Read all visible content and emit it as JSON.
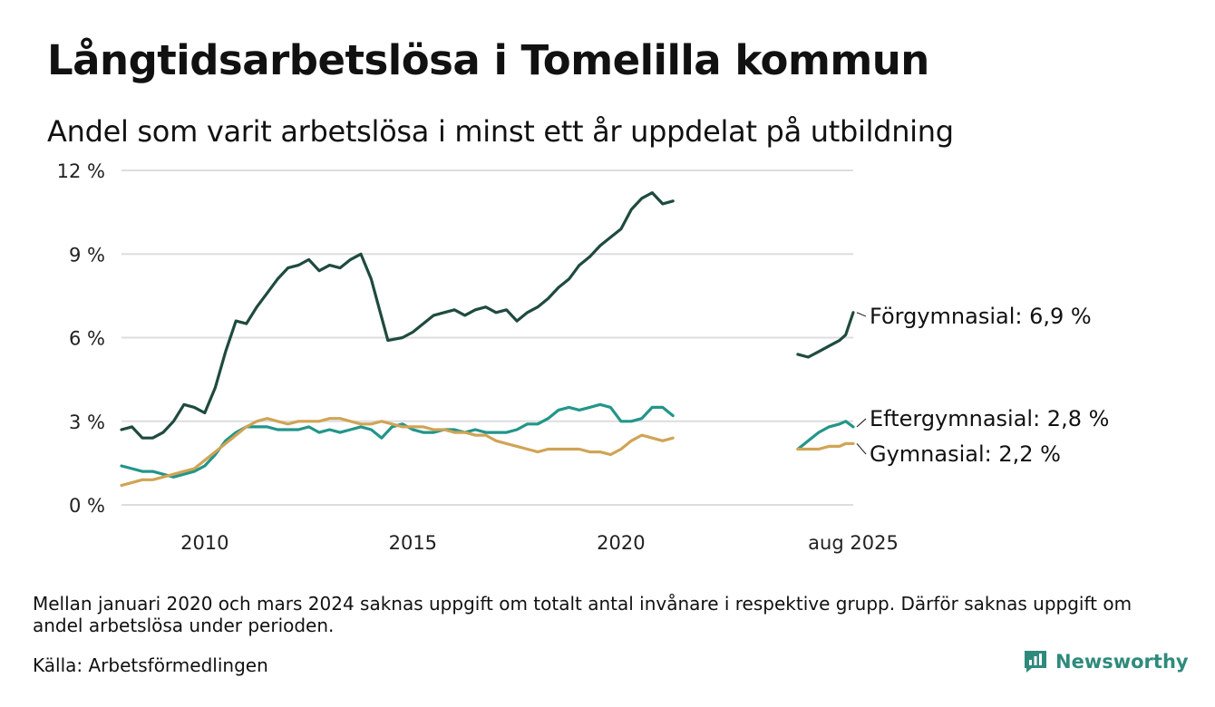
{
  "header": {
    "title": "Långtidsarbetslösa i Tomelilla kommun",
    "subtitle": "Andel som varit arbetslösa i minst ett år uppdelat på utbildning"
  },
  "footer": {
    "note": "Mellan januari 2020 och mars 2024 saknas uppgift om totalt antal invånare i respektive grupp. Därför saknas uppgift om andel arbetslösa under perioden.",
    "source": "Källa: Arbetsförmedlingen",
    "brand": "Newsworthy"
  },
  "colors": {
    "Förgymnasial": "#1f4a3f",
    "Eftergymnasial": "#23958a",
    "Gymnasial": "#d0a456",
    "grid": "#dddddd",
    "brand": "#2f8a7c"
  },
  "chart_data": {
    "type": "line",
    "y_ticks": [
      "0 %",
      "3 %",
      "6 %",
      "9 %",
      "12 %"
    ],
    "y_tick_values": [
      0,
      3,
      6,
      9,
      12
    ],
    "x_ticks": [
      "2010",
      "2015",
      "2020",
      "aug 2025"
    ],
    "x_tick_values": [
      2010.0,
      2015.0,
      2020.0,
      2025.58
    ],
    "ylim": [
      0,
      12
    ],
    "xlim": [
      2008.0,
      2025.58
    ],
    "grid": true,
    "series": [
      {
        "name": "Förgymnasial",
        "label": "Förgymnasial: 6,9 %",
        "segments": [
          [
            [
              2008.0,
              2.7
            ],
            [
              2008.25,
              2.8
            ],
            [
              2008.5,
              2.4
            ],
            [
              2008.75,
              2.4
            ],
            [
              2009.0,
              2.6
            ],
            [
              2009.25,
              3.0
            ],
            [
              2009.5,
              3.6
            ],
            [
              2009.75,
              3.5
            ],
            [
              2010.0,
              3.3
            ],
            [
              2010.25,
              4.2
            ],
            [
              2010.5,
              5.5
            ],
            [
              2010.75,
              6.6
            ],
            [
              2011.0,
              6.5
            ],
            [
              2011.25,
              7.1
            ],
            [
              2011.5,
              7.6
            ],
            [
              2011.75,
              8.1
            ],
            [
              2012.0,
              8.5
            ],
            [
              2012.25,
              8.6
            ],
            [
              2012.5,
              8.8
            ],
            [
              2012.75,
              8.4
            ],
            [
              2013.0,
              8.6
            ],
            [
              2013.25,
              8.5
            ],
            [
              2013.5,
              8.8
            ],
            [
              2013.75,
              9.0
            ],
            [
              2014.0,
              8.1
            ],
            [
              2014.2,
              7.0
            ],
            [
              2014.4,
              5.9
            ],
            [
              2014.75,
              6.0
            ],
            [
              2015.0,
              6.2
            ],
            [
              2015.25,
              6.5
            ],
            [
              2015.5,
              6.8
            ],
            [
              2015.75,
              6.9
            ],
            [
              2016.0,
              7.0
            ],
            [
              2016.25,
              6.8
            ],
            [
              2016.5,
              7.0
            ],
            [
              2016.75,
              7.1
            ],
            [
              2017.0,
              6.9
            ],
            [
              2017.25,
              7.0
            ],
            [
              2017.5,
              6.6
            ],
            [
              2017.75,
              6.9
            ],
            [
              2018.0,
              7.1
            ],
            [
              2018.25,
              7.4
            ],
            [
              2018.5,
              7.8
            ],
            [
              2018.75,
              8.1
            ],
            [
              2019.0,
              8.6
            ],
            [
              2019.25,
              8.9
            ],
            [
              2019.5,
              9.3
            ],
            [
              2019.75,
              9.6
            ],
            [
              2020.0,
              9.9
            ],
            [
              2020.25,
              10.6
            ],
            [
              2020.5,
              11.0
            ],
            [
              2020.75,
              11.2
            ],
            [
              2021.0,
              10.8
            ],
            [
              2021.25,
              10.9
            ]
          ],
          [
            [
              2024.25,
              5.4
            ],
            [
              2024.5,
              5.3
            ],
            [
              2024.75,
              5.5
            ],
            [
              2025.0,
              5.7
            ],
            [
              2025.25,
              5.9
            ],
            [
              2025.4,
              6.1
            ],
            [
              2025.58,
              6.9
            ]
          ]
        ]
      },
      {
        "name": "Eftergymnasial",
        "label": "Eftergymnasial: 2,8 %",
        "segments": [
          [
            [
              2008.0,
              1.4
            ],
            [
              2008.25,
              1.3
            ],
            [
              2008.5,
              1.2
            ],
            [
              2008.75,
              1.2
            ],
            [
              2009.0,
              1.1
            ],
            [
              2009.25,
              1.0
            ],
            [
              2009.5,
              1.1
            ],
            [
              2009.75,
              1.2
            ],
            [
              2010.0,
              1.4
            ],
            [
              2010.25,
              1.8
            ],
            [
              2010.5,
              2.3
            ],
            [
              2010.75,
              2.6
            ],
            [
              2011.0,
              2.8
            ],
            [
              2011.25,
              2.8
            ],
            [
              2011.5,
              2.8
            ],
            [
              2011.75,
              2.7
            ],
            [
              2012.0,
              2.7
            ],
            [
              2012.25,
              2.7
            ],
            [
              2012.5,
              2.8
            ],
            [
              2012.75,
              2.6
            ],
            [
              2013.0,
              2.7
            ],
            [
              2013.25,
              2.6
            ],
            [
              2013.5,
              2.7
            ],
            [
              2013.75,
              2.8
            ],
            [
              2014.0,
              2.7
            ],
            [
              2014.25,
              2.4
            ],
            [
              2014.5,
              2.8
            ],
            [
              2014.75,
              2.9
            ],
            [
              2015.0,
              2.7
            ],
            [
              2015.25,
              2.6
            ],
            [
              2015.5,
              2.6
            ],
            [
              2015.75,
              2.7
            ],
            [
              2016.0,
              2.7
            ],
            [
              2016.25,
              2.6
            ],
            [
              2016.5,
              2.7
            ],
            [
              2016.75,
              2.6
            ],
            [
              2017.0,
              2.6
            ],
            [
              2017.25,
              2.6
            ],
            [
              2017.5,
              2.7
            ],
            [
              2017.75,
              2.9
            ],
            [
              2018.0,
              2.9
            ],
            [
              2018.25,
              3.1
            ],
            [
              2018.5,
              3.4
            ],
            [
              2018.75,
              3.5
            ],
            [
              2019.0,
              3.4
            ],
            [
              2019.25,
              3.5
            ],
            [
              2019.5,
              3.6
            ],
            [
              2019.75,
              3.5
            ],
            [
              2020.0,
              3.0
            ],
            [
              2020.25,
              3.0
            ],
            [
              2020.5,
              3.1
            ],
            [
              2020.75,
              3.5
            ],
            [
              2021.0,
              3.5
            ],
            [
              2021.25,
              3.2
            ]
          ],
          [
            [
              2024.25,
              2.0
            ],
            [
              2024.5,
              2.3
            ],
            [
              2024.75,
              2.6
            ],
            [
              2025.0,
              2.8
            ],
            [
              2025.25,
              2.9
            ],
            [
              2025.4,
              3.0
            ],
            [
              2025.58,
              2.8
            ]
          ]
        ]
      },
      {
        "name": "Gymnasial",
        "label": "Gymnasial: 2,2 %",
        "segments": [
          [
            [
              2008.0,
              0.7
            ],
            [
              2008.25,
              0.8
            ],
            [
              2008.5,
              0.9
            ],
            [
              2008.75,
              0.9
            ],
            [
              2009.0,
              1.0
            ],
            [
              2009.25,
              1.1
            ],
            [
              2009.5,
              1.2
            ],
            [
              2009.75,
              1.3
            ],
            [
              2010.0,
              1.6
            ],
            [
              2010.25,
              1.9
            ],
            [
              2010.5,
              2.2
            ],
            [
              2010.75,
              2.5
            ],
            [
              2011.0,
              2.8
            ],
            [
              2011.25,
              3.0
            ],
            [
              2011.5,
              3.1
            ],
            [
              2011.75,
              3.0
            ],
            [
              2012.0,
              2.9
            ],
            [
              2012.25,
              3.0
            ],
            [
              2012.5,
              3.0
            ],
            [
              2012.75,
              3.0
            ],
            [
              2013.0,
              3.1
            ],
            [
              2013.25,
              3.1
            ],
            [
              2013.5,
              3.0
            ],
            [
              2013.75,
              2.9
            ],
            [
              2014.0,
              2.9
            ],
            [
              2014.25,
              3.0
            ],
            [
              2014.5,
              2.9
            ],
            [
              2014.75,
              2.8
            ],
            [
              2015.0,
              2.8
            ],
            [
              2015.25,
              2.8
            ],
            [
              2015.5,
              2.7
            ],
            [
              2015.75,
              2.7
            ],
            [
              2016.0,
              2.6
            ],
            [
              2016.25,
              2.6
            ],
            [
              2016.5,
              2.5
            ],
            [
              2016.75,
              2.5
            ],
            [
              2017.0,
              2.3
            ],
            [
              2017.25,
              2.2
            ],
            [
              2017.5,
              2.1
            ],
            [
              2017.75,
              2.0
            ],
            [
              2018.0,
              1.9
            ],
            [
              2018.25,
              2.0
            ],
            [
              2018.5,
              2.0
            ],
            [
              2018.75,
              2.0
            ],
            [
              2019.0,
              2.0
            ],
            [
              2019.25,
              1.9
            ],
            [
              2019.5,
              1.9
            ],
            [
              2019.75,
              1.8
            ],
            [
              2020.0,
              2.0
            ],
            [
              2020.25,
              2.3
            ],
            [
              2020.5,
              2.5
            ],
            [
              2020.75,
              2.4
            ],
            [
              2021.0,
              2.3
            ],
            [
              2021.25,
              2.4
            ]
          ],
          [
            [
              2024.25,
              2.0
            ],
            [
              2024.5,
              2.0
            ],
            [
              2024.75,
              2.0
            ],
            [
              2025.0,
              2.1
            ],
            [
              2025.25,
              2.1
            ],
            [
              2025.4,
              2.2
            ],
            [
              2025.58,
              2.2
            ]
          ]
        ]
      }
    ]
  }
}
